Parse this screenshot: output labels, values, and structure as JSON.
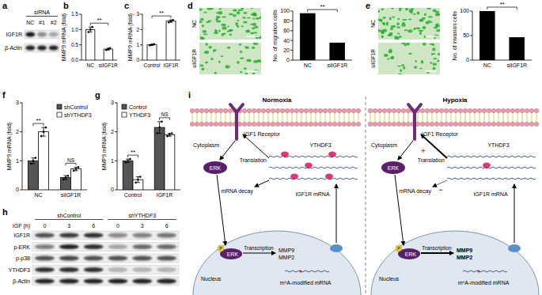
{
  "chart_data": [
    {
      "type": "bar",
      "label": "b",
      "y_label": "MMP9 mRNA (fold)",
      "categories": [
        "NC",
        "siIGF1R"
      ],
      "values": [
        1.0,
        0.36
      ],
      "errors": [
        0.08,
        0.03
      ],
      "replicates": [
        [
          0.92,
          1.0,
          1.08
        ],
        [
          0.33,
          0.36,
          0.39
        ]
      ],
      "color": "#ffffff",
      "ylim": [
        0,
        1.5
      ],
      "yticks": [
        {
          "value": 0,
          "label": "0.0"
        },
        {
          "value": 0.5,
          "label": "0.5"
        },
        {
          "value": 1,
          "label": "1.0"
        },
        {
          "value": 1.5,
          "label": "1.5"
        }
      ],
      "annotations": [
        {
          "text": "**"
        }
      ]
    },
    {
      "type": "bar",
      "label": "c",
      "y_label": "MMP9 mRNA (fold)",
      "categories": [
        "Control",
        "IGF1R"
      ],
      "values": [
        1.0,
        2.55
      ],
      "errors": [
        0.04,
        0.08
      ],
      "replicates": [
        [
          0.96,
          1.0,
          1.04
        ],
        [
          2.47,
          2.55,
          2.62
        ]
      ],
      "color": "#ffffff",
      "ylim": [
        0,
        3
      ],
      "yticks": [
        0,
        1,
        2,
        3
      ],
      "annotations": [
        {
          "text": "**"
        }
      ]
    },
    {
      "type": "bar",
      "label": "d",
      "y_label": "No. of migration cells",
      "categories": [
        "NC",
        "siIGF1R"
      ],
      "values": [
        95,
        35
      ],
      "color": "#000000",
      "ylim": [
        0,
        100
      ],
      "yticks": [
        0,
        20,
        40,
        60,
        80,
        100
      ],
      "annotations": [
        {
          "text": "**"
        }
      ]
    },
    {
      "type": "bar",
      "label": "e",
      "y_label": "No. of invasion cells",
      "categories": [
        "NC",
        "siIGF1R"
      ],
      "values": [
        100,
        46
      ],
      "color": "#000000",
      "ylim": [
        0,
        100
      ],
      "yticks": [
        0,
        50,
        100
      ],
      "annotations": [
        {
          "text": "**"
        }
      ]
    },
    {
      "type": "bar",
      "label": "f",
      "y_label": "MMP9 mRNA (fold)",
      "categories": [
        "NC",
        "siIGF1R"
      ],
      "series": [
        {
          "name": "shControl",
          "color": "#555555",
          "values": [
            1.0,
            0.42
          ],
          "errors": [
            0.1,
            0.07
          ],
          "replicates": [
            [
              0.9,
              1.0,
              1.1
            ],
            [
              0.36,
              0.42,
              0.48
            ]
          ]
        },
        {
          "name": "shYTHDF3",
          "color": "#ffffff",
          "values": [
            2.0,
            0.72
          ],
          "errors": [
            0.15,
            0.06
          ],
          "replicates": [
            [
              1.85,
              2.0,
              2.15
            ],
            [
              0.66,
              0.72,
              0.78
            ]
          ]
        }
      ],
      "ylim": [
        0,
        3
      ],
      "yticks": [
        0,
        1,
        2,
        3
      ],
      "legend": "top-right",
      "annotations": [
        {
          "text": "**",
          "category": 0
        },
        {
          "text": "NS",
          "category": 1
        }
      ]
    },
    {
      "type": "bar",
      "label": "g",
      "y_label": "MMP9 mRNA (fold)",
      "categories": [
        "Control",
        "IGF1R"
      ],
      "series": [
        {
          "name": "Control",
          "color": "#555555",
          "values": [
            1.0,
            2.15
          ],
          "errors": [
            0.06,
            0.2
          ],
          "replicates": [
            [
              0.94,
              1.0,
              1.06
            ],
            [
              1.95,
              2.15,
              2.35
            ]
          ]
        },
        {
          "name": "YTHDF3",
          "color": "#ffffff",
          "values": [
            0.35,
            1.9
          ],
          "errors": [
            0.1,
            0.05
          ],
          "replicates": [
            [
              0.25,
              0.35,
              0.45
            ],
            [
              1.85,
              1.9,
              1.95
            ]
          ]
        }
      ],
      "ylim": [
        0,
        3
      ],
      "yticks": [
        0,
        1,
        2,
        3
      ],
      "legend": "top-left",
      "annotations": [
        {
          "text": "**",
          "category": 0
        },
        {
          "text": "NS",
          "category": 1
        }
      ]
    }
  ],
  "images": {
    "d": [
      "NC",
      "siIGF1R"
    ],
    "e": [
      "NC",
      "siIGF1R"
    ]
  },
  "blots": {
    "a": {
      "label": "a",
      "header": "siRNA",
      "lanes": [
        "NC",
        "#1",
        "#2"
      ],
      "rows": [
        {
          "name": "IGF1R",
          "intensity": [
            0.95,
            0.45,
            0.3
          ]
        },
        {
          "name": "β-Actin",
          "intensity": [
            0.9,
            0.9,
            0.9
          ]
        }
      ]
    },
    "h": {
      "label": "h",
      "groups": [
        "shControl",
        "shYTHDF3"
      ],
      "lane_header": "IGF (h)",
      "lanes": [
        "0",
        "3",
        "6",
        "0",
        "3",
        "6"
      ],
      "rows": [
        {
          "name": "IGF1R",
          "intensity": [
            0.7,
            0.8,
            0.85,
            0.45,
            0.5,
            0.55
          ]
        },
        {
          "name": "p-ERK",
          "intensity": [
            0.5,
            0.9,
            0.85,
            0.3,
            0.6,
            0.6
          ]
        },
        {
          "name": "p-p38",
          "intensity": [
            0.7,
            0.75,
            0.7,
            0.7,
            0.7,
            0.7
          ]
        },
        {
          "name": "YTHDF3",
          "intensity": [
            0.85,
            0.85,
            0.85,
            0.25,
            0.25,
            0.25
          ]
        },
        {
          "name": "β-Actin",
          "intensity": [
            0.9,
            0.9,
            0.9,
            0.9,
            0.9,
            0.9
          ]
        }
      ]
    }
  },
  "diagram": {
    "label": "i",
    "halves": [
      {
        "title": "Normoxia",
        "receptor": "IGF1 Receptor",
        "cytoplasm": "Cytoplasm",
        "reader": "YTHDF3",
        "translation": "Translation",
        "decay": "mRNA decay",
        "kinase": "ERK",
        "phospho": "P",
        "transcription": "Transcription",
        "targets": [
          "MMP9",
          "MMP2"
        ],
        "mrna": "IGF1R mRNA",
        "nucleus": "Nucleus",
        "modified": "m⁶A-modified mRNA"
      },
      {
        "title": "Hypoxia",
        "receptor": "IGF1 Receptor",
        "cytoplasm": "Cytoplasm",
        "reader": "YTHDF3",
        "translation": "Translation",
        "translation_sign": "+",
        "decay": "mRNA decay",
        "decay_sign": "−",
        "kinase": "ERK",
        "phospho": "P",
        "transcription": "Transcription",
        "targets": [
          "MMP9",
          "MMP2"
        ],
        "mrna": "IGF1R mRNA",
        "nucleus": "Nucleus",
        "modified": "m⁶A-modified mRNA"
      }
    ]
  }
}
